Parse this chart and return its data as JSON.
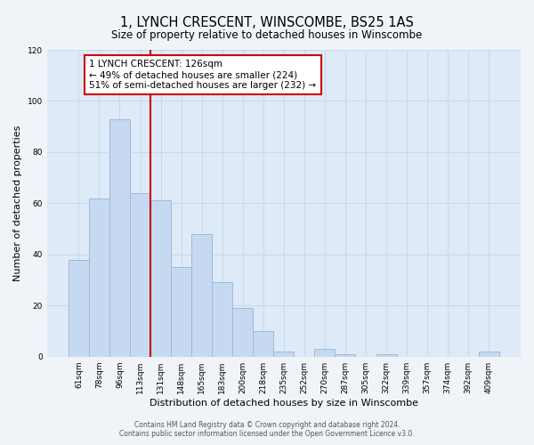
{
  "title": "1, LYNCH CRESCENT, WINSCOMBE, BS25 1AS",
  "subtitle": "Size of property relative to detached houses in Winscombe",
  "xlabel": "Distribution of detached houses by size in Winscombe",
  "ylabel": "Number of detached properties",
  "bar_labels": [
    "61sqm",
    "78sqm",
    "96sqm",
    "113sqm",
    "131sqm",
    "148sqm",
    "165sqm",
    "183sqm",
    "200sqm",
    "218sqm",
    "235sqm",
    "252sqm",
    "270sqm",
    "287sqm",
    "305sqm",
    "322sqm",
    "339sqm",
    "357sqm",
    "374sqm",
    "392sqm",
    "409sqm"
  ],
  "bar_values": [
    38,
    62,
    93,
    64,
    61,
    35,
    48,
    29,
    19,
    10,
    2,
    0,
    3,
    1,
    0,
    1,
    0,
    0,
    0,
    0,
    2
  ],
  "bar_color": "#c5d9f0",
  "bar_edge_color": "#a0b8d8",
  "vline_index": 4,
  "vline_color": "#cc0000",
  "annotation_text_line1": "1 LYNCH CRESCENT: 126sqm",
  "annotation_text_line2": "← 49% of detached houses are smaller (224)",
  "annotation_text_line3": "51% of semi-detached houses are larger (232) →",
  "ylim": [
    0,
    120
  ],
  "yticks": [
    0,
    20,
    40,
    60,
    80,
    100,
    120
  ],
  "grid_color": "#c8daea",
  "plot_bg_color": "#deeaf7",
  "fig_bg_color": "#f0f4f8",
  "footer_line1": "Contains HM Land Registry data © Crown copyright and database right 2024.",
  "footer_line2": "Contains public sector information licensed under the Open Government Licence v3.0."
}
